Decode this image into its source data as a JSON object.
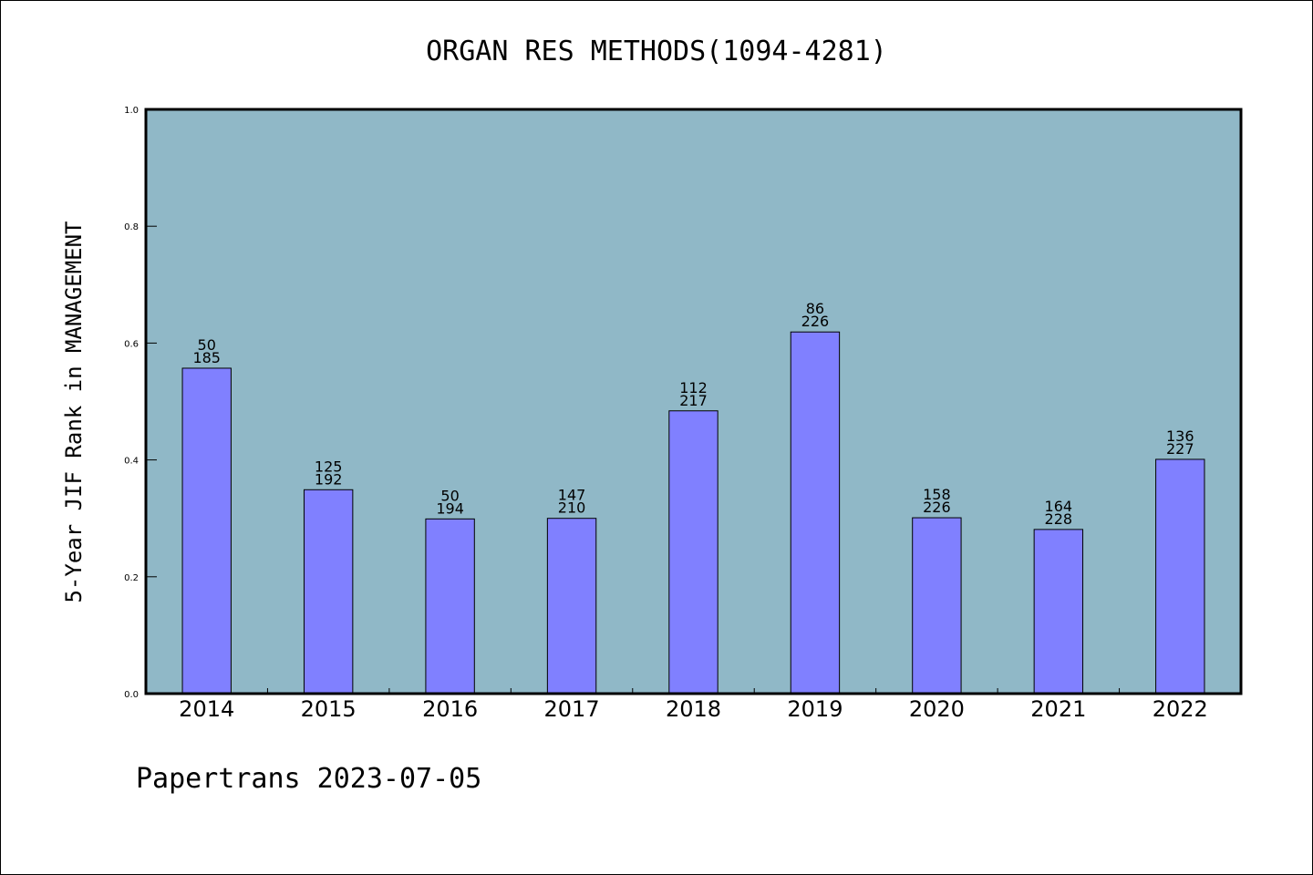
{
  "chart_data": {
    "type": "bar",
    "title": "ORGAN RES METHODS(1094-4281)",
    "ylabel": "5-Year JIF Rank in MANAGEMENT",
    "xlabel": "",
    "ylim": [
      0,
      1.0
    ],
    "yticks": [
      "0.0",
      "0.2",
      "0.4",
      "0.6",
      "0.8",
      "1.0"
    ],
    "categories": [
      "2014",
      "2015",
      "2016",
      "2017",
      "2018",
      "2019",
      "2020",
      "2021",
      "2022"
    ],
    "values": [
      0.557,
      0.349,
      0.299,
      0.3,
      0.484,
      0.619,
      0.301,
      0.281,
      0.401
    ],
    "rank": [
      "50",
      "125",
      "50",
      "147",
      "112",
      "86",
      "158",
      "164",
      "136"
    ],
    "total": [
      "185",
      "192",
      "194",
      "210",
      "217",
      "226",
      "226",
      "228",
      "227"
    ],
    "grid": false,
    "colors": {
      "plot_background": "#90b8c7",
      "bar_fill": "#8080ff",
      "bar_stroke": "#000000"
    }
  },
  "footer": "Papertrans 2023-07-05"
}
